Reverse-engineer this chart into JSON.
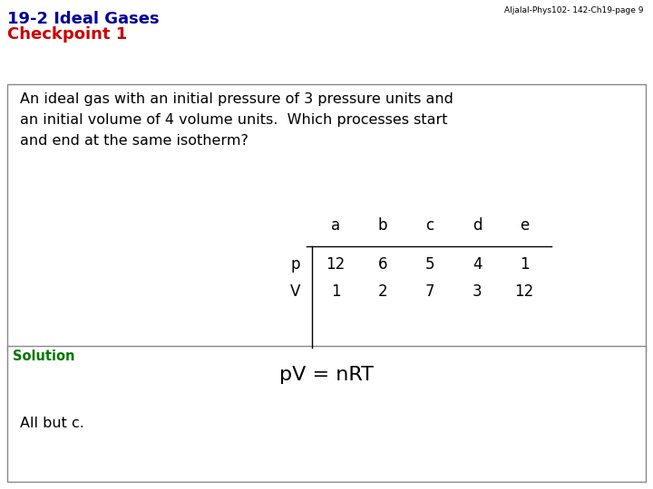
{
  "title_line1": "19-2 Ideal Gases",
  "title_line2": "Checkpoint 1",
  "header_right": "Aljalal-Phys102- 142-Ch19-page 9",
  "question_text": "An ideal gas with an initial pressure of 3 pressure units and\nan initial volume of 4 volume units.  Which processes start\nand end at the same isotherm?",
  "table_headers": [
    "a",
    "b",
    "c",
    "d",
    "e"
  ],
  "table_row_labels": [
    "p",
    "V"
  ],
  "table_data": [
    [
      12,
      6,
      5,
      4,
      1
    ],
    [
      1,
      2,
      7,
      3,
      12
    ]
  ],
  "solution_label": "Solution",
  "solution_formula": "pV = nRT",
  "solution_answer": "All but c.",
  "bg_color": "#ffffff",
  "title_color1": "#000099",
  "title_color2": "#cc0000",
  "solution_label_color": "#007700",
  "text_color": "#000000",
  "box_edge_color": "#888888",
  "font_family": "DejaVu Sans"
}
